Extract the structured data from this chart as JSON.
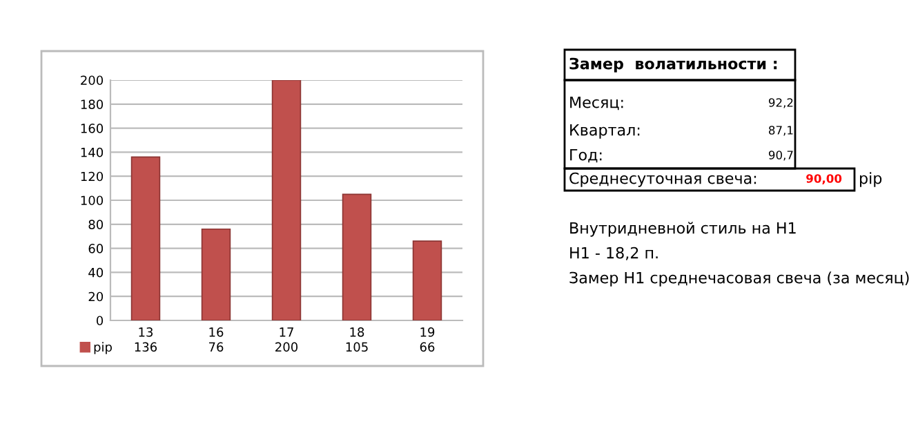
{
  "chart_data": {
    "type": "bar",
    "categories": [
      "13",
      "16",
      "17",
      "18",
      "19"
    ],
    "series": [
      {
        "name": "pip",
        "color": "#c0504d",
        "values": [
          136,
          76,
          200,
          105,
          66
        ]
      }
    ],
    "ylim": [
      0,
      200
    ],
    "yticks": [
      0,
      20,
      40,
      60,
      80,
      100,
      120,
      140,
      160,
      180,
      200
    ],
    "grid": "y",
    "legend": "bottom",
    "data_labels": true,
    "annotations": [
      "Замер  волатильности :",
      "Месяц:",
      "92,2",
      "Квартал:",
      "87,1",
      "Год:",
      "90,7",
      "Среднесуточная свеча:",
      "90,00",
      "pip",
      "Внутридневной стиль на H1",
      "H1 - 18,2 п.",
      "Замер H1 среднечасовая свеча (за месяц)"
    ]
  }
}
